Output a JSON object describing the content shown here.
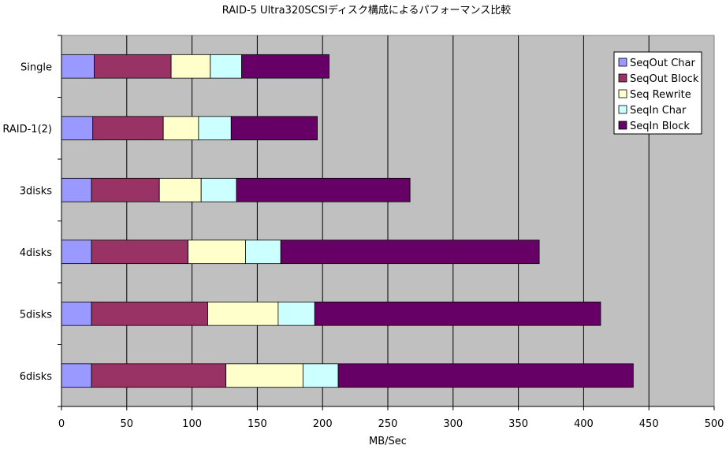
{
  "chart_data": {
    "type": "bar",
    "orientation": "horizontal",
    "stacked": true,
    "title": "RAID-5 Ultra320SCSIディスク構成によるパフォーマンス比較",
    "xlabel": "MB/Sec",
    "ylabel": "",
    "xlim": [
      0,
      500
    ],
    "xticks": [
      0,
      50,
      100,
      150,
      200,
      250,
      300,
      350,
      400,
      450,
      500
    ],
    "grid": true,
    "legend_position": "top-right",
    "categories": [
      "Single",
      "RAID-1(2)",
      "3disks",
      "4disks",
      "5disks",
      "6disks"
    ],
    "series": [
      {
        "name": "SeqOut Char",
        "color": "#9999ff",
        "values": [
          25,
          24,
          23,
          23,
          23,
          23
        ]
      },
      {
        "name": "SeqOut Block",
        "color": "#993366",
        "values": [
          59,
          54,
          52,
          74,
          89,
          103
        ]
      },
      {
        "name": "Seq Rewrite",
        "color": "#ffffcc",
        "values": [
          30,
          27,
          32,
          44,
          54,
          59
        ]
      },
      {
        "name": "SeqIn Char",
        "color": "#ccffff",
        "values": [
          24,
          25,
          27,
          27,
          28,
          27
        ]
      },
      {
        "name": "SeqIn Block",
        "color": "#660066",
        "values": [
          67,
          66,
          133,
          198,
          219,
          226
        ]
      }
    ]
  }
}
